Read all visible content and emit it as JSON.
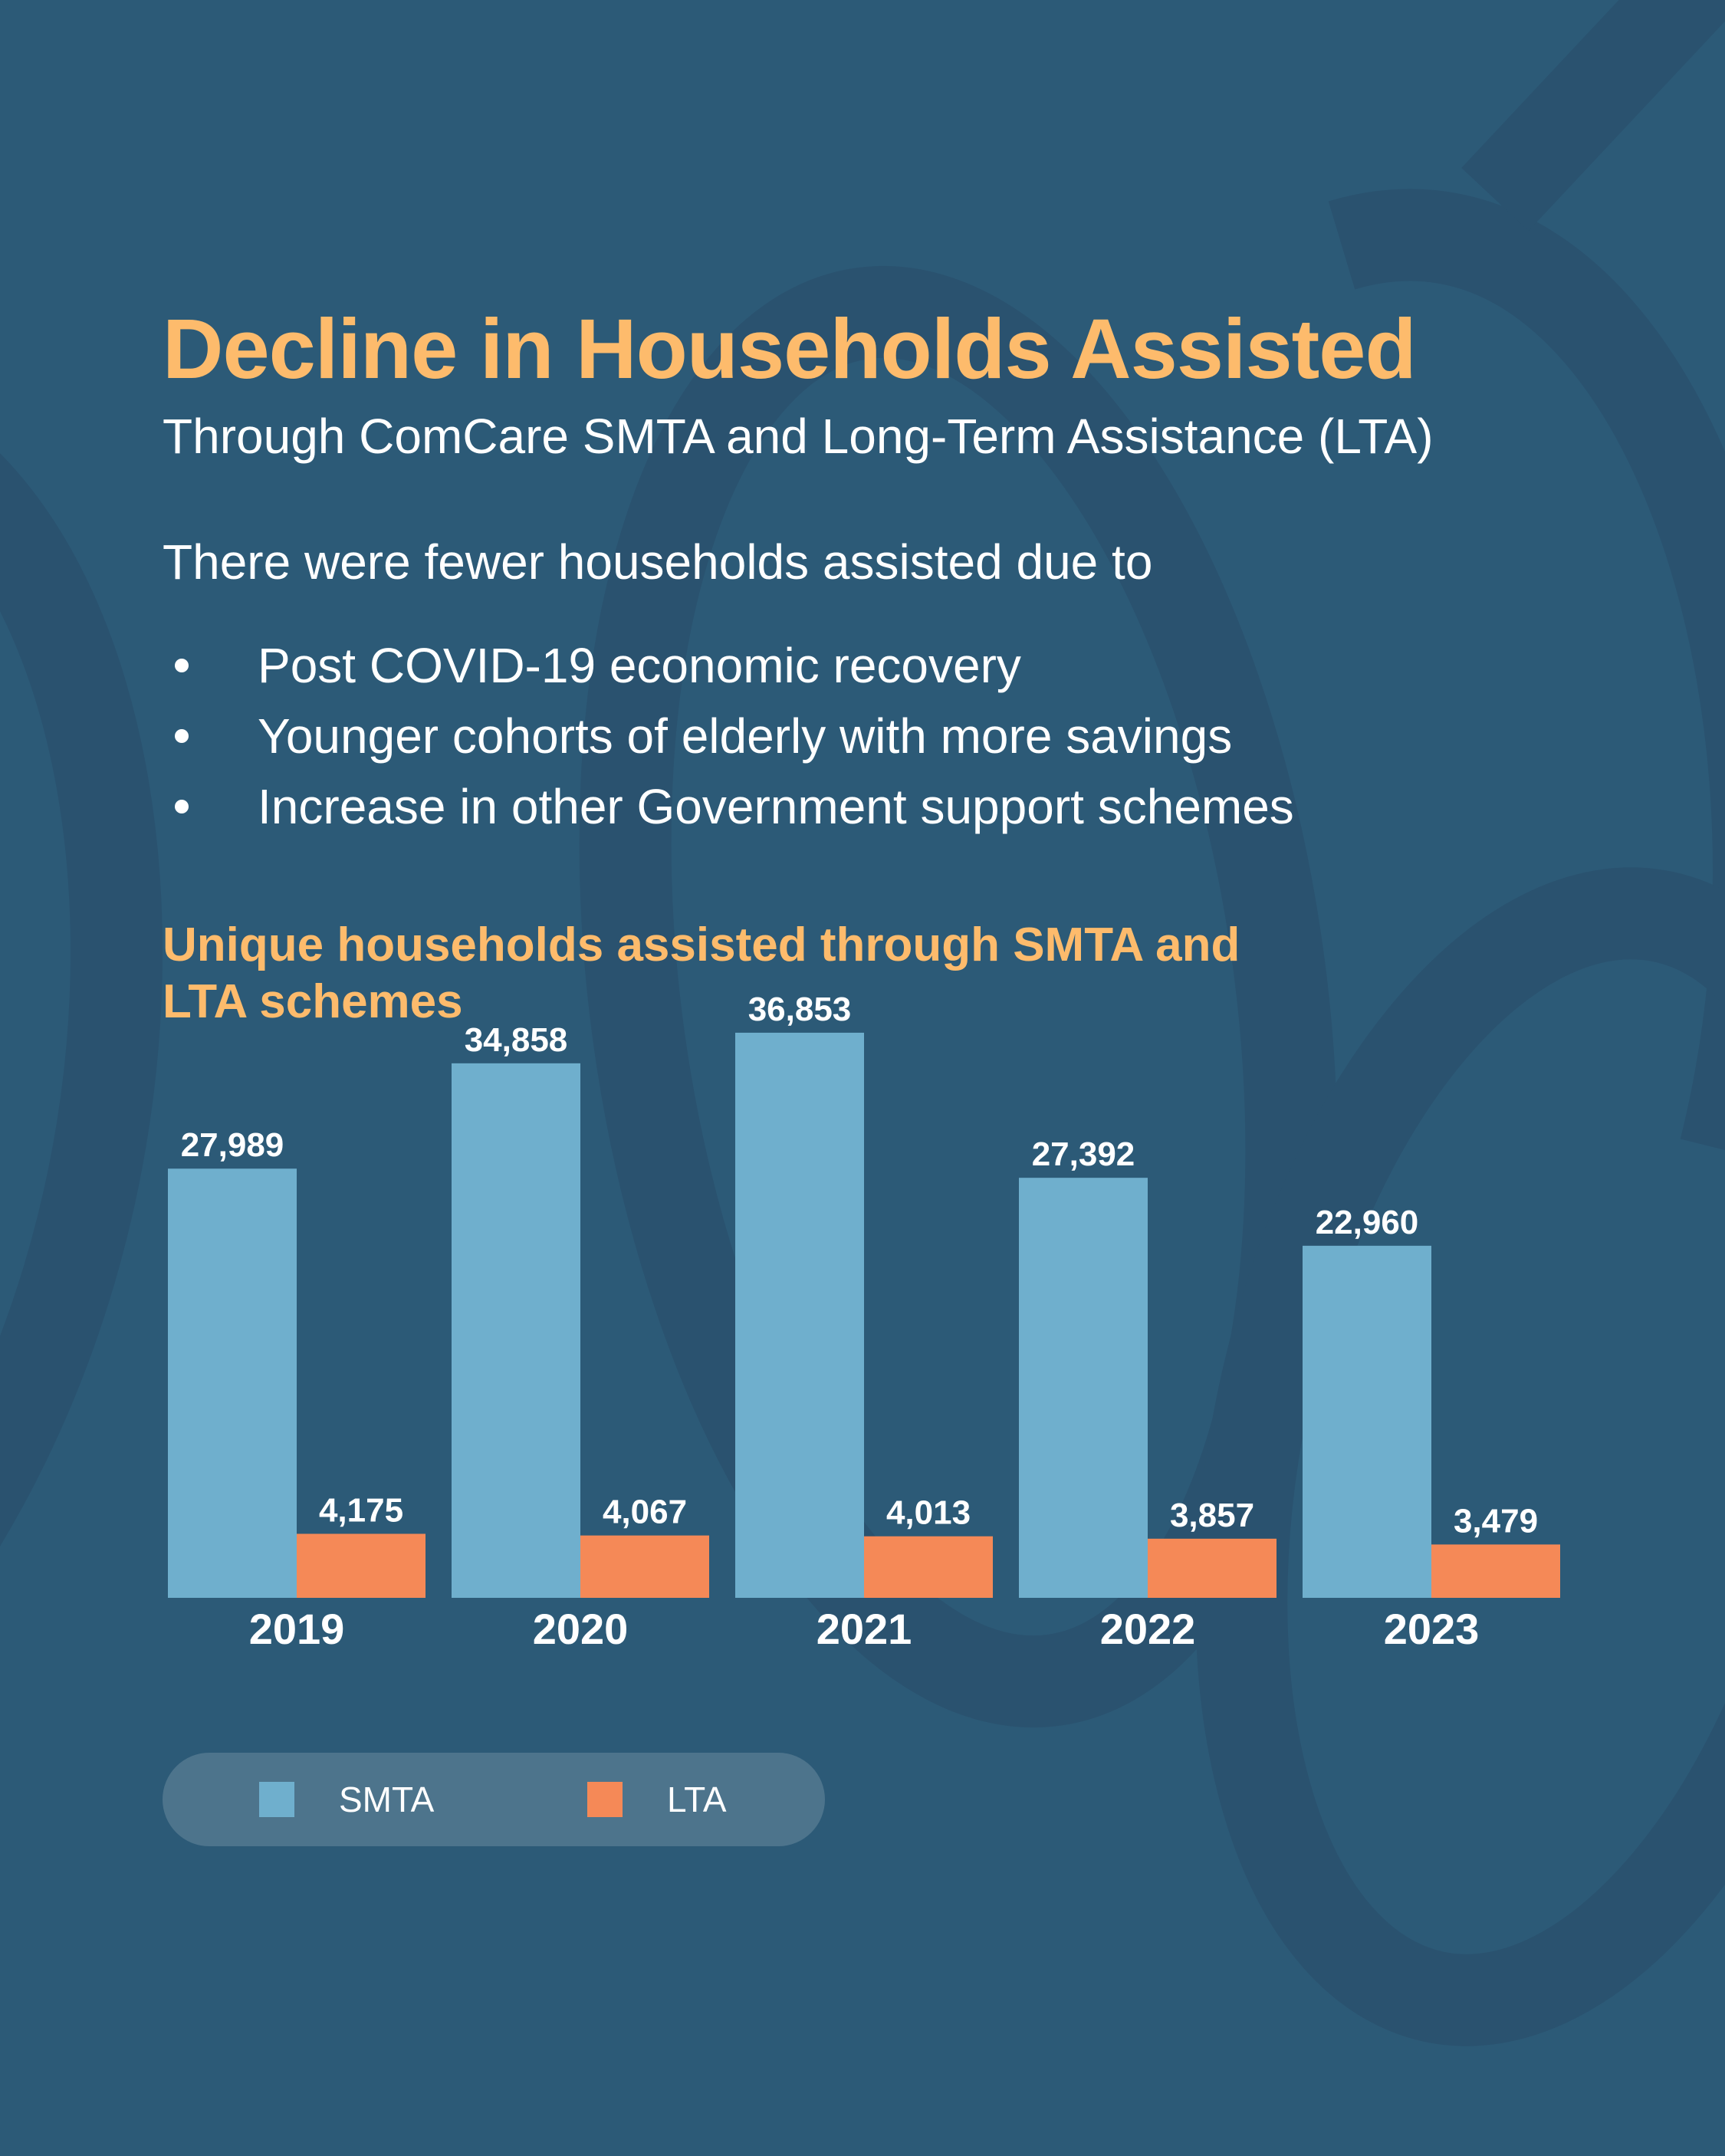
{
  "header": {
    "title": "Decline in Households Assisted",
    "subtitle": "Through ComCare SMTA and Long-Term Assistance (LTA)"
  },
  "reasons": {
    "intro": "There were fewer households assisted due to",
    "items": [
      "Post COVID-19 economic recovery",
      "Younger cohorts of elderly with more savings",
      "Increase in other Government support schemes"
    ]
  },
  "colors": {
    "background": "#2c5a77",
    "accent": "#fdbb6c",
    "smta": "#6fafcd",
    "lta": "#f58957"
  },
  "chart_data": {
    "type": "bar",
    "title": "Unique households assisted through SMTA and LTA schemes",
    "categories": [
      "2019",
      "2020",
      "2021",
      "2022",
      "2023"
    ],
    "series": [
      {
        "name": "SMTA",
        "values": [
          27989,
          34858,
          36853,
          27392,
          22960
        ],
        "labels": [
          "27,989",
          "34,858",
          "36,853",
          "27,392",
          "22,960"
        ]
      },
      {
        "name": "LTA",
        "values": [
          4175,
          4067,
          4013,
          3857,
          3479
        ],
        "labels": [
          "4,175",
          "4,067",
          "4,013",
          "3,857",
          "3,479"
        ]
      }
    ],
    "ylim": [
      0,
      40000
    ],
    "grid": false,
    "legend": "bottom-left"
  }
}
